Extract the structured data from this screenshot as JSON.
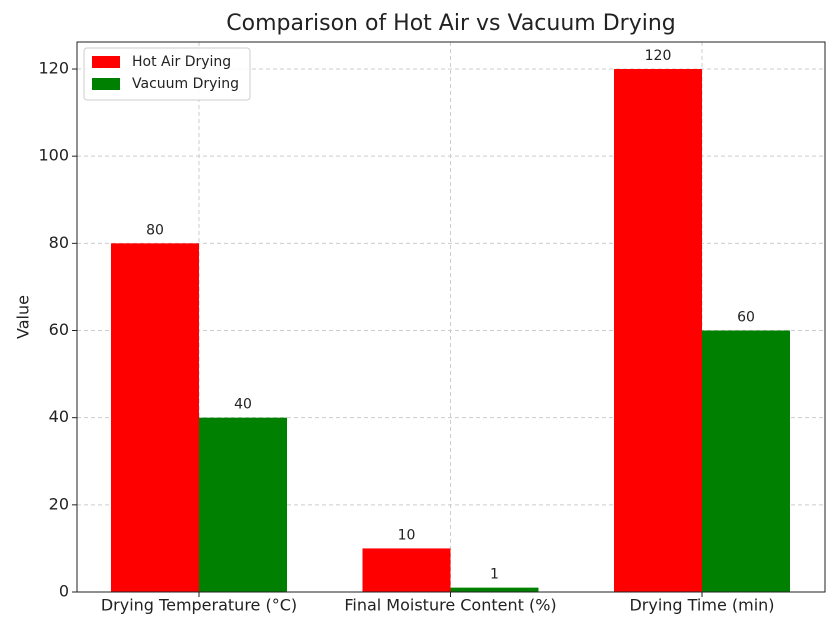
{
  "chart_data": {
    "type": "bar",
    "title": "Comparison of Hot Air vs Vacuum Drying",
    "y_label": "Value",
    "categories": [
      "Drying Temperature (°C)",
      "Final Moisture Content (%)",
      "Drying Time (min)"
    ],
    "series": [
      {
        "name": "Hot Air Drying",
        "color": "#ff0000",
        "values": [
          80,
          10,
          120
        ]
      },
      {
        "name": "Vacuum Drying",
        "color": "#008000",
        "values": [
          40,
          1,
          60
        ]
      }
    ],
    "ylim": [
      0,
      126.2
    ],
    "yticks": [
      0,
      20,
      40,
      60,
      80,
      100,
      120
    ],
    "grid": true,
    "legend": "upper left"
  }
}
